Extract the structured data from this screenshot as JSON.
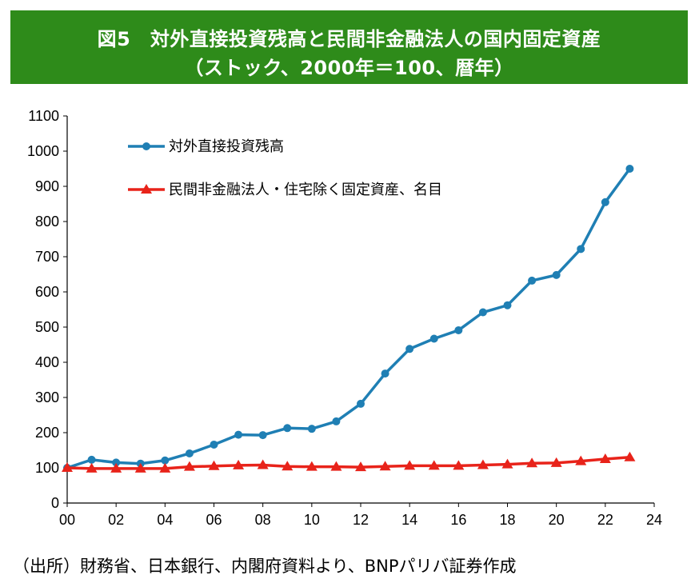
{
  "header": {
    "title_line1": "図5　対外直接投資残高と民間非金融法人の国内固定資産",
    "title_line2": "（ストック、2000年＝100、暦年）"
  },
  "source": "（出所）財務省、日本銀行、内閣府資料より、BNPパリバ証券作成",
  "colors": {
    "title_bg": "#2e8b1a",
    "series1": "#1f7fb4",
    "series2": "#e8231a"
  },
  "chart_data": {
    "type": "line",
    "xlim": [
      0,
      24
    ],
    "ylim": [
      0,
      1100
    ],
    "x_ticks": [
      "00",
      "02",
      "04",
      "06",
      "08",
      "10",
      "12",
      "14",
      "16",
      "18",
      "20",
      "22",
      "24"
    ],
    "y_ticks": [
      "0",
      "100",
      "200",
      "300",
      "400",
      "500",
      "600",
      "700",
      "800",
      "900",
      "1000",
      "1100"
    ],
    "grid": false,
    "legend_position": "top-left",
    "x": [
      0,
      1,
      2,
      3,
      4,
      5,
      6,
      7,
      8,
      9,
      10,
      11,
      12,
      13,
      14,
      15,
      16,
      17,
      18,
      19,
      20,
      21,
      22,
      23
    ],
    "series": [
      {
        "name": "対外直接投資残高",
        "marker": "circle",
        "values": [
          100,
          123,
          115,
          112,
          121,
          141,
          166,
          194,
          193,
          213,
          211,
          232,
          282,
          368,
          438,
          467,
          491,
          542,
          562,
          632,
          648,
          722,
          855,
          950
        ]
      },
      {
        "name": "民間非金融法人・住宅除く固定資産、名目",
        "marker": "triangle",
        "values": [
          100,
          98,
          98,
          98,
          98,
          103,
          105,
          107,
          108,
          104,
          103,
          103,
          102,
          104,
          106,
          106,
          106,
          108,
          110,
          113,
          114,
          119,
          125,
          130
        ]
      }
    ]
  }
}
